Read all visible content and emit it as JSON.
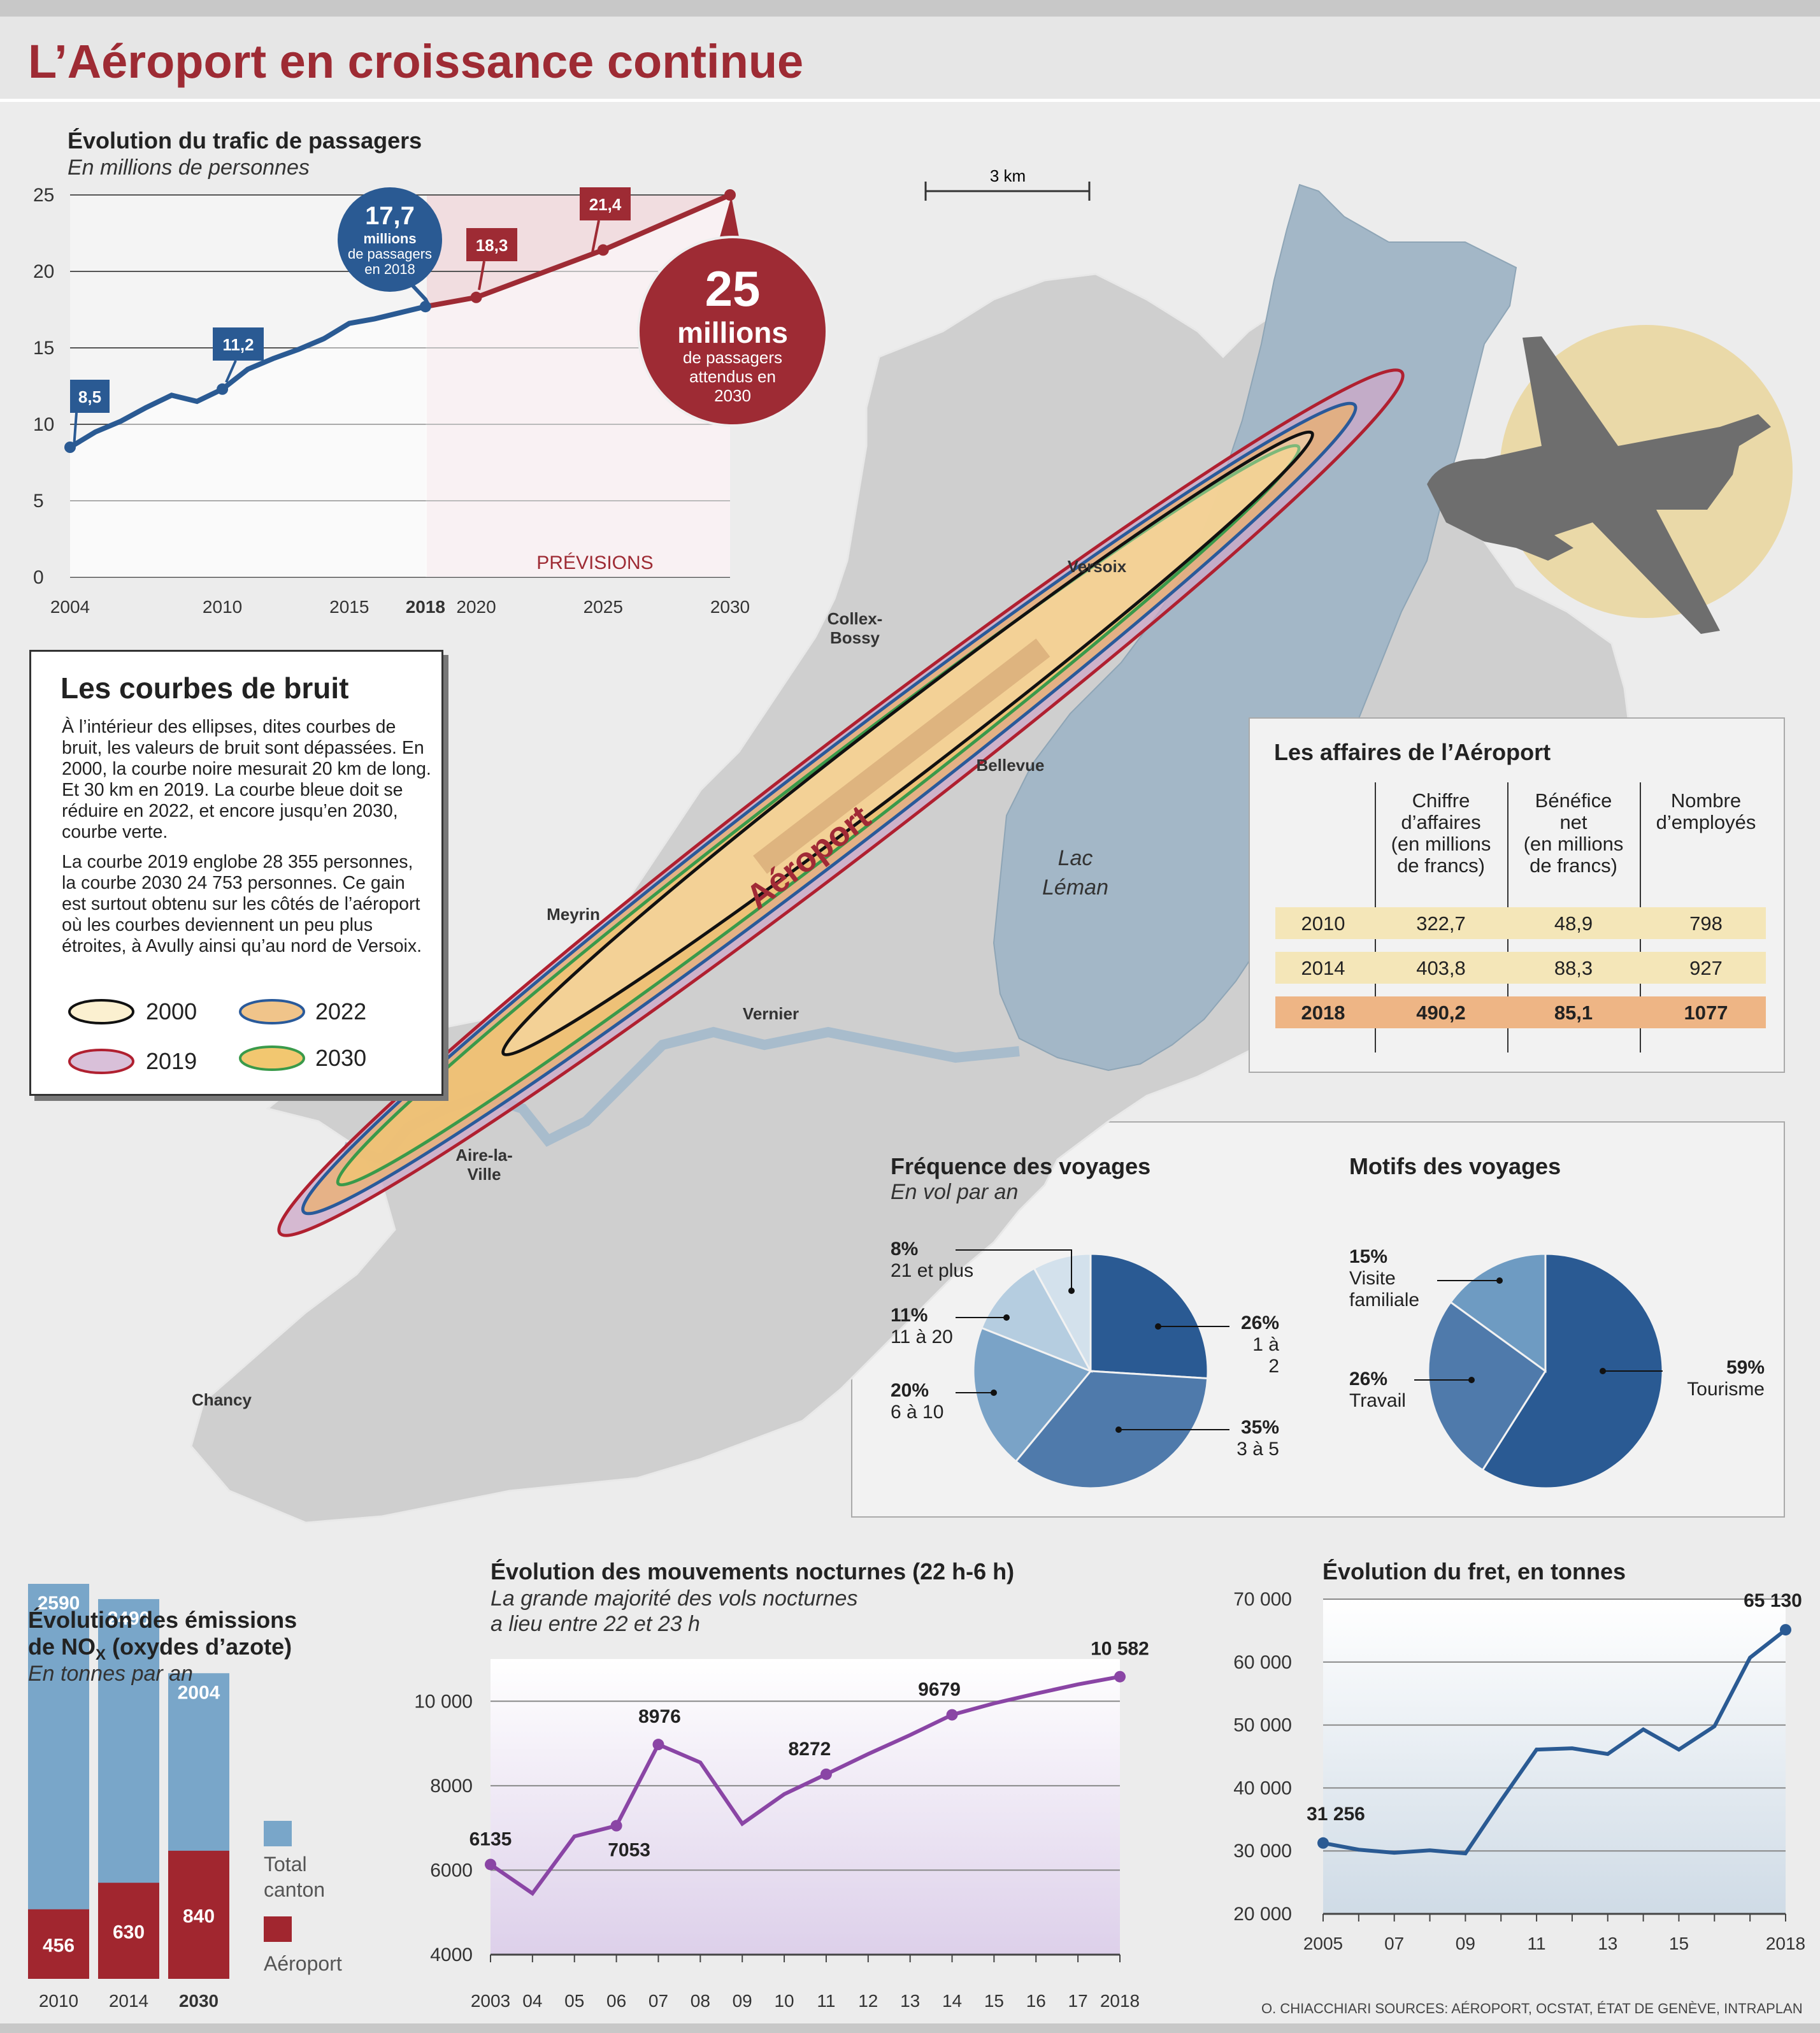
{
  "title": "L’Aéroport en croissance continue",
  "passengers": {
    "title": "Évolution du trafic de passagers",
    "subtitle": "En millions de personnes",
    "forecast_label": "PRÉVISIONS",
    "callout_2018": {
      "value": "17,7",
      "line1": "millions",
      "line2": "de passagers",
      "line3": "en 2018"
    },
    "callout_2030": {
      "value": "25",
      "line1": "millions",
      "line2": "de passagers",
      "line3": "attendus en",
      "line4": "2030"
    },
    "flags": [
      "8,5",
      "11,2",
      "18,3",
      "21,4"
    ]
  },
  "map": {
    "scale_label": "3 km",
    "airport_label": "Aéroport",
    "lake_line1": "Lac",
    "lake_line2": "Léman",
    "places": {
      "versoix": "Versoix",
      "collex1": "Collex-",
      "collex2": "Bossy",
      "bellevue": "Bellevue",
      "meyrin": "Meyrin",
      "vernier": "Vernier",
      "aire1": "Aire-la-",
      "aire2": "Ville",
      "chancy": "Chancy"
    }
  },
  "noise": {
    "title": "Les courbes de bruit",
    "p1": "À l’intérieur des ellipses, dites courbes de bruit, les valeurs de bruit sont dépassées. En 2000, la courbe noire mesurait 20 km de long. Et 30 km en 2019. La courbe bleue doit se réduire en 2022, et encore jusqu’en 2030, courbe verte.",
    "p2": "La courbe 2019 englobe 28 355 personnes, la courbe 2030 24 753 personnes. Ce gain est surtout obtenu sur les côtés de l’aéroport où les courbes deviennent un peu plus étroites, à Avully ainsi qu’au nord de Versoix.",
    "legend": [
      {
        "label": "2000",
        "fill": "#fbf0d0",
        "stroke": "#111111"
      },
      {
        "label": "2022",
        "fill": "#f0c48a",
        "stroke": "#2a5a9a"
      },
      {
        "label": "2019",
        "fill": "#d9c0d9",
        "stroke": "#b02030"
      },
      {
        "label": "2030",
        "fill": "#f2c770",
        "stroke": "#3a9a4a"
      }
    ]
  },
  "business": {
    "title": "Les affaires de l’Aéroport",
    "headers": [
      [
        "Chiffre",
        "d’affaires",
        "(en millions",
        "de francs)"
      ],
      [
        "Bénéfice",
        "net",
        "(en millions",
        "de francs)"
      ],
      [
        "Nombre",
        "d’employés"
      ]
    ],
    "rows": [
      {
        "year": "2010",
        "revenue": "322,7",
        "profit": "48,9",
        "staff": "798"
      },
      {
        "year": "2014",
        "revenue": "403,8",
        "profit": "88,3",
        "staff": "927"
      },
      {
        "year": "2018",
        "revenue": "490,2",
        "profit": "85,1",
        "staff": "1077"
      }
    ]
  },
  "frequency": {
    "title": "Fréquence des voyages",
    "subtitle": "En vol par an",
    "labels": [
      {
        "pct": "26%",
        "desc": "1 à 2"
      },
      {
        "pct": "35%",
        "desc": "3 à 5"
      },
      {
        "pct": "20%",
        "desc": "6 à 10"
      },
      {
        "pct": "11%",
        "desc": "11 à 20"
      },
      {
        "pct": "8%",
        "desc": "21 et plus"
      }
    ]
  },
  "motives": {
    "title": "Motifs des voyages",
    "labels": [
      {
        "pct": "59%",
        "desc": "Tourisme"
      },
      {
        "pct": "26%",
        "desc": "Travail"
      },
      {
        "pct": "15%",
        "desc1": "Visite",
        "desc2": "familiale"
      }
    ]
  },
  "nox": {
    "title1": "Évolution des émissions",
    "title2a": "de NO",
    "title2sub": "X",
    "title2b": " (oxydes d’azote)",
    "subtitle": "En tonnes par an",
    "legend_total1": "Total",
    "legend_total2": "canton",
    "legend_airport": "Aéroport"
  },
  "night": {
    "title": "Évolution des mouvements nocturnes (22 h-6 h)",
    "subtitle1": "La grande majorité des vols nocturnes",
    "subtitle2": "a lieu entre 22 et 23 h"
  },
  "freight": {
    "title": "Évolution du fret, en tonnes"
  },
  "credits": "O. CHIACCHIARI   SOURCES: AÉROPORT, OCSTAT, ÉTAT DE GENÈVE, INTRAPLAN",
  "colors": {
    "accent_red": "#9e2b34",
    "blue": "#2a5a93",
    "purple": "#8a45a5",
    "lake": "#a3b7c7",
    "land": "#cfcfcf"
  },
  "chart_data": [
    {
      "type": "line",
      "id": "passengers",
      "title": "Évolution du trafic de passagers",
      "ylabel": "En millions de personnes",
      "ylim": [
        0,
        25
      ],
      "yticks": [
        0,
        5,
        10,
        15,
        20,
        25
      ],
      "xticks": [
        "2004",
        "2010",
        "2015",
        "2018",
        "2020",
        "2025",
        "2030"
      ],
      "series": [
        {
          "values": [
            [
              2004,
              8.5
            ],
            [
              2005,
              9.5
            ],
            [
              2006,
              10.2
            ],
            [
              2007,
              11.1
            ],
            [
              2008,
              11.9
            ],
            [
              2009,
              11.5
            ],
            [
              2010,
              12.3
            ],
            [
              2011,
              13.6
            ],
            [
              2012,
              14.3
            ],
            [
              2013,
              14.9
            ],
            [
              2014,
              15.6
            ],
            [
              2015,
              16.6
            ],
            [
              2016,
              16.9
            ],
            [
              2017,
              17.3
            ],
            [
              2018,
              17.7
            ]
          ]
        },
        {
          "values": [
            [
              2018,
              17.7
            ],
            [
              2020,
              18.3
            ],
            [
              2025,
              21.4
            ],
            [
              2030,
              25.0
            ]
          ]
        }
      ]
    },
    {
      "type": "pie",
      "id": "frequency",
      "title": "Fréquence des voyages",
      "categories": [
        "1 à 2",
        "3 à 5",
        "6 à 10",
        "11 à 20",
        "21 et plus"
      ],
      "values": [
        26,
        35,
        20,
        11,
        8
      ],
      "colors": [
        "#2a5a93",
        "#4f7aab",
        "#7aa3c7",
        "#b5cde0",
        "#d3e1ec"
      ]
    },
    {
      "type": "pie",
      "id": "motives",
      "title": "Motifs des voyages",
      "categories": [
        "Tourisme",
        "Travail",
        "Visite familiale"
      ],
      "values": [
        59,
        26,
        15
      ],
      "colors": [
        "#2a5a93",
        "#4f7aab",
        "#6e9bc2"
      ]
    },
    {
      "type": "bar",
      "id": "nox",
      "title": "Évolution des émissions de NOx (oxydes d’azote)",
      "categories": [
        "2010",
        "2014",
        "2030"
      ],
      "series": [
        {
          "name": "Total canton",
          "values": [
            2590,
            2490,
            2004
          ]
        },
        {
          "name": "Aéroport",
          "values": [
            456,
            630,
            840
          ]
        }
      ]
    },
    {
      "type": "line",
      "id": "night",
      "title": "Évolution des mouvements nocturnes (22 h-6 h)",
      "ylim": [
        4000,
        11000
      ],
      "yticks": [
        "4000",
        "6000",
        "8000",
        "10 000"
      ],
      "categories": [
        "2003",
        "04",
        "05",
        "06",
        "07",
        "08",
        "09",
        "10",
        "11",
        "12",
        "13",
        "14",
        "15",
        "16",
        "17",
        "2018"
      ],
      "values": [
        6135,
        5450,
        6800,
        7053,
        8976,
        8550,
        7100,
        7800,
        8272,
        8750,
        9200,
        9679,
        9950,
        10180,
        10400,
        10582
      ],
      "value_labels": {
        "0": "6135",
        "3": "7053",
        "4": "8976",
        "8": "8272",
        "11": "9679",
        "15": "10 582"
      }
    },
    {
      "type": "area",
      "id": "freight",
      "title": "Évolution du fret, en tonnes",
      "ylim": [
        20000,
        70000
      ],
      "yticks": [
        "20 000",
        "30 000",
        "40 000",
        "50 000",
        "60 000",
        "70 000"
      ],
      "xticks": [
        "2005",
        "07",
        "09",
        "11",
        "13",
        "15",
        "2018"
      ],
      "x": [
        2005,
        2006,
        2007,
        2008,
        2009,
        2010,
        2011,
        2012,
        2013,
        2014,
        2015,
        2016,
        2017,
        2018
      ],
      "values": [
        31256,
        30200,
        29700,
        30100,
        29600,
        38000,
        46100,
        46300,
        45400,
        49300,
        46100,
        49800,
        60700,
        65130
      ],
      "value_labels": {
        "0": "31 256",
        "13": "65 130"
      }
    }
  ]
}
